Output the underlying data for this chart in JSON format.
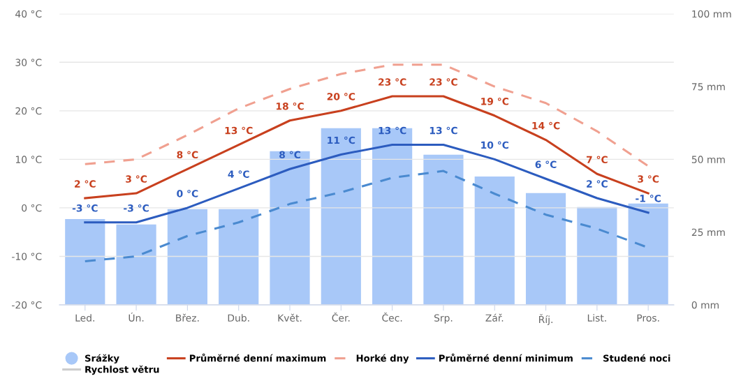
{
  "chart_data": {
    "type": "line",
    "categories": [
      "Led.",
      "Ún.",
      "Břez.",
      "Dub.",
      "Květ.",
      "Čer.",
      "Čec.",
      "Srp.",
      "Zář.",
      "Říj.",
      "List.",
      "Pros."
    ],
    "series": [
      {
        "name": "Srážky",
        "type": "bar",
        "axis": "y2",
        "color": "#a8c8f8",
        "values": [
          29.5,
          27.6,
          32.9,
          32.9,
          52.8,
          60.7,
          60.7,
          51.6,
          44.1,
          38.4,
          33.6,
          34.8
        ]
      },
      {
        "name": "Průměrné denní maximum",
        "color": "#c8401e",
        "line_style": "solid",
        "values": [
          2,
          3,
          8,
          13,
          18,
          20,
          23,
          23,
          19,
          14,
          7,
          3
        ],
        "value_labels": [
          "2 °C",
          "3 °C",
          "8 °C",
          "13 °C",
          "18 °C",
          "20 °C",
          "23 °C",
          "23 °C",
          "19 °C",
          "14 °C",
          "7 °C",
          "3 °C"
        ]
      },
      {
        "name": "Horké dny",
        "color": "#f0a090",
        "line_style": "dashed",
        "values": [
          9,
          10,
          15,
          20.5,
          24.5,
          27.6,
          29.5,
          29.5,
          25,
          21.6,
          15.8,
          8.6
        ]
      },
      {
        "name": "Průměrné denní minimum",
        "color": "#2c5cbf",
        "line_style": "solid",
        "values": [
          -3,
          -3,
          0,
          4,
          8,
          11,
          13,
          13,
          10,
          6,
          2,
          -1
        ],
        "value_labels": [
          "-3 °C",
          "-3 °C",
          "0 °C",
          "4 °C",
          "8 °C",
          "11 °C",
          "13 °C",
          "13 °C",
          "10 °C",
          "6 °C",
          "2 °C",
          "-1 °C"
        ]
      },
      {
        "name": "Studené noci",
        "color": "#4a8ad0",
        "line_style": "dashed",
        "values": [
          -11,
          -10,
          -5.8,
          -3,
          0.8,
          3.2,
          6.2,
          7.6,
          2.9,
          -1.4,
          -4.3,
          -8.2
        ]
      },
      {
        "name": "Rychlost větru",
        "color": "#cccccc",
        "line_style": "solid",
        "values": [
          null,
          null,
          null,
          null,
          null,
          null,
          null,
          null,
          null,
          null,
          null,
          null
        ]
      }
    ],
    "ylim": [
      -20,
      40
    ],
    "yticks": [
      {
        "value": -20,
        "label": "-20 °C"
      },
      {
        "value": -10,
        "label": "-10 °C"
      },
      {
        "value": 0,
        "label": "0 °C"
      },
      {
        "value": 10,
        "label": "10 °C"
      },
      {
        "value": 20,
        "label": "20 °C"
      },
      {
        "value": 30,
        "label": "30 °C"
      },
      {
        "value": 40,
        "label": "40 °C"
      }
    ],
    "y2lim": [
      0,
      100
    ],
    "y2ticks": [
      {
        "value": 0,
        "label": "0 mm"
      },
      {
        "value": 25,
        "label": "25 mm"
      },
      {
        "value": 50,
        "label": "50 mm"
      },
      {
        "value": 75,
        "label": "75 mm"
      },
      {
        "value": 100,
        "label": "100 mm"
      }
    ],
    "grid": "y",
    "legend": "bottom",
    "marker": "none"
  }
}
